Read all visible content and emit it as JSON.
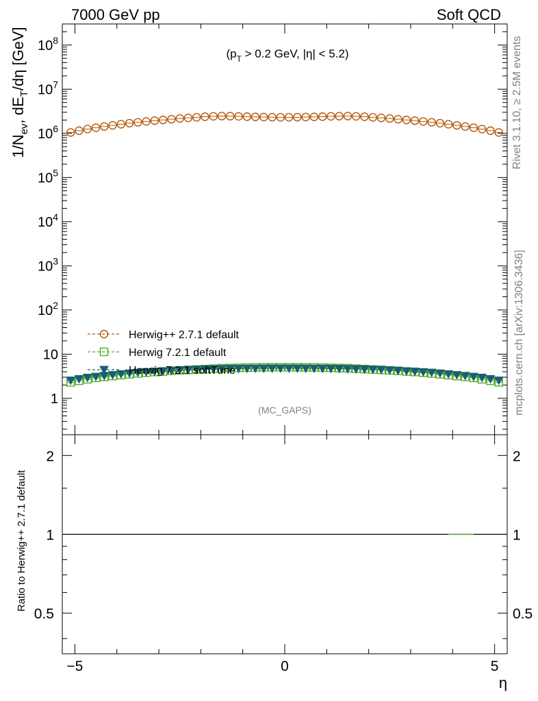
{
  "header": {
    "left": "7000 GeV pp",
    "right": "Soft QCD"
  },
  "annotations": {
    "cut": "(p_T > 0.2 GeV, |η| < 5.2)",
    "analysis": "(MC_GAPS)",
    "side_top": "Rivet 3.1.10, ≥ 2.5M events",
    "side_bottom": "mcplots.cern.ch [arXiv:1306.3436]"
  },
  "colors": {
    "herwigpp": "#b35806",
    "herwig721": "#4daf1c",
    "softtune": "#1b5e73"
  },
  "chart_data": [
    {
      "type": "line",
      "panel": "main",
      "ylabel": "1/N_ev, dE_T/dη [GeV]",
      "xlim": [
        -5.3,
        5.3
      ],
      "ylim": [
        0.15,
        300000000
      ],
      "yscale": "log",
      "xticks": [
        "−5",
        "0",
        "5"
      ],
      "yticks": [
        "1",
        "10",
        "10^2",
        "10^3",
        "10^4",
        "10^5",
        "10^6",
        "10^7",
        "10^8"
      ],
      "legend_position": "left, lower middle",
      "x": [
        -5.1,
        -4.9,
        -4.7,
        -4.5,
        -4.3,
        -4.1,
        -3.9,
        -3.7,
        -3.5,
        -3.3,
        -3.1,
        -2.9,
        -2.7,
        -2.5,
        -2.3,
        -2.1,
        -1.9,
        -1.7,
        -1.5,
        -1.3,
        -1.1,
        -0.9,
        -0.7,
        -0.5,
        -0.3,
        -0.1,
        0.1,
        0.3,
        0.5,
        0.7,
        0.9,
        1.1,
        1.3,
        1.5,
        1.7,
        1.9,
        2.1,
        2.3,
        2.5,
        2.7,
        2.9,
        3.1,
        3.3,
        3.5,
        3.7,
        3.9,
        4.1,
        4.3,
        4.5,
        4.7,
        4.9,
        5.1
      ],
      "series": [
        {
          "name": "Herwig++ 2.7.1 default",
          "marker": "open-circle",
          "values": [
            1050000,
            1150000,
            1250000,
            1340000,
            1430000,
            1520000,
            1610000,
            1700000,
            1780000,
            1860000,
            1940000,
            2010000,
            2090000,
            2170000,
            2240000,
            2310000,
            2380000,
            2430000,
            2460000,
            2450000,
            2430000,
            2390000,
            2360000,
            2340000,
            2320000,
            2310000,
            2310000,
            2320000,
            2340000,
            2360000,
            2390000,
            2430000,
            2450000,
            2460000,
            2430000,
            2380000,
            2310000,
            2240000,
            2170000,
            2090000,
            2010000,
            1940000,
            1860000,
            1780000,
            1700000,
            1610000,
            1520000,
            1430000,
            1340000,
            1250000,
            1150000,
            1050000
          ]
        },
        {
          "name": "Herwig 7.2.1 default",
          "marker": "open-square",
          "values": [
            2.3,
            2.5,
            2.7,
            2.9,
            3.05,
            3.2,
            3.35,
            3.5,
            3.65,
            3.8,
            3.95,
            4.05,
            4.2,
            4.3,
            4.4,
            4.5,
            4.6,
            4.7,
            4.8,
            4.85,
            4.9,
            4.95,
            5.0,
            5.02,
            5.05,
            5.05,
            5.05,
            5.05,
            5.02,
            5.0,
            4.95,
            4.9,
            4.85,
            4.8,
            4.7,
            4.6,
            4.5,
            4.4,
            4.3,
            4.2,
            4.05,
            3.95,
            3.8,
            3.65,
            3.5,
            3.35,
            3.2,
            3.05,
            2.9,
            2.7,
            2.5,
            2.3
          ]
        },
        {
          "name": "Herwig 7.2.1 softTune",
          "marker": "filled-triangle-down",
          "values": [
            2.55,
            2.75,
            2.95,
            3.1,
            3.25,
            3.4,
            3.55,
            3.7,
            3.85,
            3.95,
            4.05,
            4.15,
            4.25,
            4.35,
            4.45,
            4.5,
            4.55,
            4.6,
            4.65,
            4.7,
            4.72,
            4.74,
            4.76,
            4.78,
            4.8,
            4.8,
            4.8,
            4.8,
            4.78,
            4.76,
            4.74,
            4.72,
            4.7,
            4.65,
            4.6,
            4.55,
            4.5,
            4.45,
            4.35,
            4.25,
            4.15,
            4.05,
            3.95,
            3.85,
            3.7,
            3.55,
            3.4,
            3.25,
            3.1,
            2.95,
            2.75,
            2.55
          ]
        }
      ]
    },
    {
      "type": "line",
      "panel": "ratio",
      "ylabel": "Ratio to Herwig++ 2.7.1 default",
      "xlabel": "η",
      "xlim": [
        -5.3,
        5.3
      ],
      "ylim": [
        0.35,
        2.4
      ],
      "yscale": "log",
      "yticks": [
        "0.5",
        "1",
        "2"
      ],
      "ratio_line": 1
    }
  ]
}
